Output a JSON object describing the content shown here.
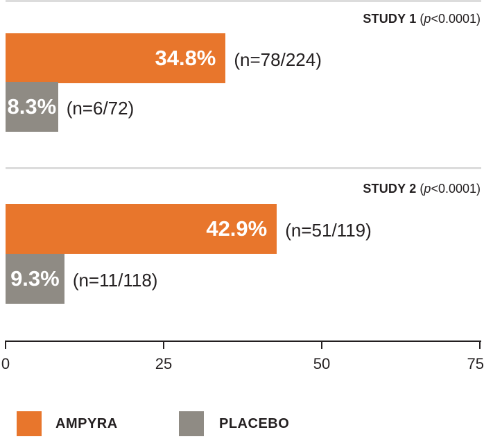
{
  "colors": {
    "ampyra": "#e8762c",
    "placebo": "#8f8b84"
  },
  "chart_data": {
    "type": "bar",
    "orientation": "horizontal",
    "xlim": [
      0,
      75
    ],
    "x_ticks": [
      "0",
      "25",
      "50",
      "75"
    ],
    "legend": [
      "AMPYRA",
      "PLACEBO"
    ],
    "legend_position": "bottom-left",
    "groups": [
      {
        "title": "STUDY 1",
        "p_label_italic": "p",
        "p_label_rest": "<0.0001)",
        "bars": [
          {
            "series": "AMPYRA",
            "value": 34.8,
            "label": "34.8%",
            "n": "(n=78/224)"
          },
          {
            "series": "PLACEBO",
            "value": 8.3,
            "label": "8.3%",
            "n": "(n=6/72)"
          }
        ]
      },
      {
        "title": "STUDY 2",
        "p_label_italic": "p",
        "p_label_rest": "<0.0001)",
        "bars": [
          {
            "series": "AMPYRA",
            "value": 42.9,
            "label": "42.9%",
            "n": "(n=51/119)"
          },
          {
            "series": "PLACEBO",
            "value": 9.3,
            "label": "9.3%",
            "n": "(n=11/118)"
          }
        ]
      }
    ]
  }
}
